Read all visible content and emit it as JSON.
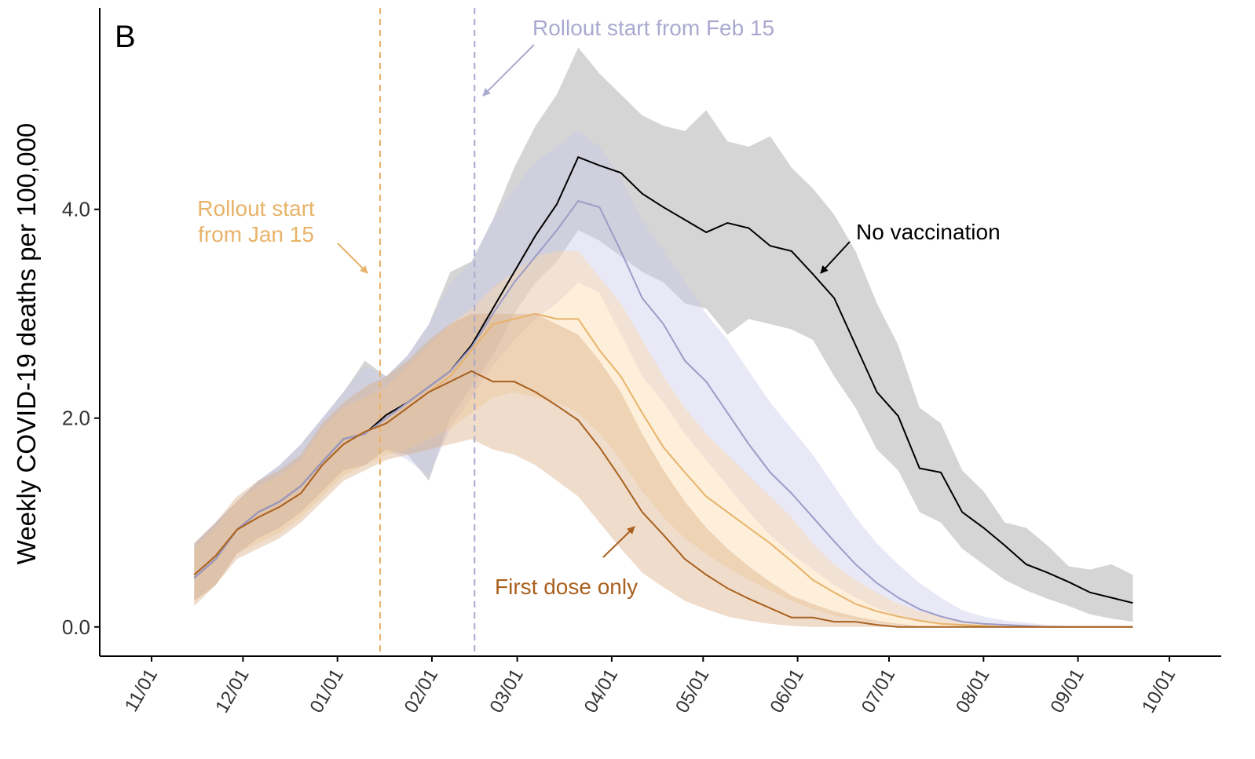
{
  "chart_data": {
    "type": "line",
    "panel_label": "B",
    "ylabel": "Weekly COVID-19 deaths per 100,000",
    "xlabel": "",
    "ylim": [
      -0.28,
      5.93
    ],
    "xlim": [
      "2020-10-15",
      "2021-10-18"
    ],
    "grid": false,
    "y_ticks": [
      {
        "value": 0,
        "label": "0.0"
      },
      {
        "value": 2,
        "label": "2.0"
      },
      {
        "value": 4,
        "label": "4.0"
      }
    ],
    "x_ticks": [
      {
        "date": "2020-11-01",
        "label": "11/01"
      },
      {
        "date": "2020-12-01",
        "label": "12/01"
      },
      {
        "date": "2021-01-01",
        "label": "01/01"
      },
      {
        "date": "2021-02-01",
        "label": "02/01"
      },
      {
        "date": "2021-03-01",
        "label": "03/01"
      },
      {
        "date": "2021-04-01",
        "label": "04/01"
      },
      {
        "date": "2021-05-01",
        "label": "05/01"
      },
      {
        "date": "2021-06-01",
        "label": "06/01"
      },
      {
        "date": "2021-07-01",
        "label": "07/01"
      },
      {
        "date": "2021-08-01",
        "label": "08/01"
      },
      {
        "date": "2021-09-01",
        "label": "09/01"
      },
      {
        "date": "2021-10-01",
        "label": "10/01"
      }
    ],
    "x": [
      "2020-11-15",
      "2020-11-22",
      "2020-11-29",
      "2020-12-06",
      "2020-12-13",
      "2020-12-20",
      "2020-12-27",
      "2021-01-03",
      "2021-01-10",
      "2021-01-17",
      "2021-01-24",
      "2021-01-31",
      "2021-02-07",
      "2021-02-14",
      "2021-02-21",
      "2021-02-28",
      "2021-03-07",
      "2021-03-14",
      "2021-03-21",
      "2021-03-28",
      "2021-04-04",
      "2021-04-11",
      "2021-04-18",
      "2021-04-25",
      "2021-05-02",
      "2021-05-09",
      "2021-05-16",
      "2021-05-23",
      "2021-05-30",
      "2021-06-06",
      "2021-06-13",
      "2021-06-20",
      "2021-06-27",
      "2021-07-04",
      "2021-07-11",
      "2021-07-18",
      "2021-07-25",
      "2021-08-01",
      "2021-08-08",
      "2021-08-15",
      "2021-08-22",
      "2021-08-29",
      "2021-09-05",
      "2021-09-12",
      "2021-09-19"
    ],
    "series": [
      {
        "name": "No vaccination",
        "color": "#000000",
        "band_color": "#9a9a9a",
        "values": [
          0.47,
          0.65,
          0.93,
          1.1,
          1.2,
          1.35,
          1.58,
          1.8,
          1.85,
          2.03,
          2.15,
          2.3,
          2.45,
          2.7,
          3.05,
          3.4,
          3.75,
          4.05,
          4.5,
          4.42,
          4.35,
          4.15,
          4.02,
          3.9,
          3.78,
          3.87,
          3.82,
          3.65,
          3.6,
          3.38,
          3.15,
          2.7,
          2.25,
          2.02,
          1.52,
          1.48,
          1.1,
          0.95,
          0.78,
          0.6,
          0.52,
          0.43,
          0.33,
          0.28,
          0.23
        ],
        "lower": [
          0.25,
          0.4,
          0.7,
          0.85,
          0.95,
          1.1,
          1.3,
          1.5,
          1.55,
          1.7,
          1.65,
          1.4,
          2.0,
          2.3,
          2.6,
          3.0,
          3.3,
          3.5,
          3.8,
          3.7,
          3.55,
          3.4,
          3.3,
          3.1,
          3.05,
          2.8,
          2.95,
          2.9,
          2.85,
          2.75,
          2.4,
          2.1,
          1.7,
          1.5,
          1.1,
          1.0,
          0.75,
          0.6,
          0.45,
          0.35,
          0.27,
          0.2,
          0.12,
          0.08,
          0.05
        ],
        "upper": [
          0.8,
          1.0,
          1.2,
          1.4,
          1.55,
          1.75,
          2.0,
          2.25,
          2.55,
          2.4,
          2.6,
          2.9,
          3.4,
          3.5,
          3.9,
          4.4,
          4.8,
          5.1,
          5.55,
          5.3,
          5.1,
          4.9,
          4.8,
          4.75,
          4.95,
          4.65,
          4.6,
          4.7,
          4.4,
          4.2,
          3.95,
          3.6,
          3.1,
          2.7,
          2.1,
          1.95,
          1.5,
          1.3,
          1.0,
          0.95,
          0.78,
          0.58,
          0.55,
          0.6,
          0.5
        ]
      },
      {
        "name": "Rollout start from Feb 15",
        "color": "#9d9cc8",
        "band_color": "#c9c9ea",
        "values": [
          0.47,
          0.65,
          0.93,
          1.1,
          1.2,
          1.35,
          1.58,
          1.8,
          1.85,
          2.0,
          2.15,
          2.3,
          2.45,
          2.68,
          3.0,
          3.3,
          3.55,
          3.8,
          4.08,
          4.02,
          3.6,
          3.15,
          2.9,
          2.55,
          2.35,
          2.05,
          1.75,
          1.48,
          1.28,
          1.05,
          0.82,
          0.6,
          0.42,
          0.28,
          0.17,
          0.1,
          0.05,
          0.03,
          0.02,
          0.01,
          0,
          0,
          0,
          0,
          0
        ],
        "lower": [
          0.25,
          0.4,
          0.7,
          0.85,
          0.95,
          1.1,
          1.3,
          1.5,
          1.55,
          1.7,
          1.6,
          1.45,
          1.9,
          2.2,
          2.5,
          2.75,
          2.95,
          3.1,
          3.3,
          3.2,
          2.8,
          2.4,
          2.15,
          1.85,
          1.6,
          1.35,
          1.1,
          0.88,
          0.7,
          0.55,
          0.4,
          0.28,
          0.18,
          0.1,
          0.05,
          0.03,
          0.01,
          0,
          0,
          0,
          0,
          0,
          0,
          0,
          0
        ],
        "upper": [
          0.8,
          1.0,
          1.2,
          1.4,
          1.55,
          1.75,
          2.0,
          2.25,
          2.5,
          2.4,
          2.6,
          2.9,
          3.3,
          3.5,
          3.9,
          4.2,
          4.45,
          4.6,
          4.75,
          4.6,
          4.3,
          3.9,
          3.6,
          3.3,
          3.0,
          2.75,
          2.45,
          2.15,
          1.9,
          1.65,
          1.35,
          1.05,
          0.8,
          0.6,
          0.42,
          0.28,
          0.16,
          0.1,
          0.06,
          0.04,
          0.02,
          0.01,
          0,
          0,
          0
        ]
      },
      {
        "name": "Rollout start from Jan 15",
        "color": "#e8b36a",
        "band_color": "#fcd9a6",
        "values": [
          0.5,
          0.68,
          0.93,
          1.05,
          1.15,
          1.28,
          1.55,
          1.75,
          1.87,
          1.95,
          2.1,
          2.25,
          2.4,
          2.65,
          2.9,
          2.95,
          3.0,
          2.95,
          2.95,
          2.65,
          2.4,
          2.05,
          1.72,
          1.48,
          1.25,
          1.1,
          0.95,
          0.8,
          0.63,
          0.45,
          0.33,
          0.22,
          0.15,
          0.1,
          0.06,
          0.03,
          0.02,
          0.01,
          0,
          0,
          0,
          0,
          0,
          0,
          0
        ],
        "lower": [
          0.25,
          0.4,
          0.7,
          0.8,
          0.9,
          1.05,
          1.25,
          1.45,
          1.55,
          1.65,
          1.7,
          1.8,
          1.9,
          2.05,
          2.2,
          2.25,
          2.2,
          2.15,
          2.05,
          1.85,
          1.6,
          1.3,
          1.05,
          0.85,
          0.7,
          0.57,
          0.45,
          0.35,
          0.25,
          0.17,
          0.11,
          0.07,
          0.04,
          0.02,
          0.01,
          0,
          0,
          0,
          0,
          0,
          0,
          0,
          0,
          0,
          0
        ],
        "upper": [
          0.75,
          0.95,
          1.2,
          1.35,
          1.45,
          1.6,
          1.9,
          2.1,
          2.2,
          2.3,
          2.5,
          2.7,
          2.9,
          3.05,
          3.25,
          3.4,
          3.55,
          3.6,
          3.6,
          3.35,
          3.1,
          2.75,
          2.4,
          2.1,
          1.85,
          1.65,
          1.45,
          1.25,
          1.05,
          0.8,
          0.6,
          0.45,
          0.33,
          0.22,
          0.15,
          0.1,
          0.06,
          0.04,
          0.02,
          0.01,
          0,
          0,
          0,
          0,
          0
        ]
      },
      {
        "name": "First dose only",
        "color": "#a9601e",
        "band_color": "#d9ab82",
        "values": [
          0.5,
          0.68,
          0.93,
          1.05,
          1.15,
          1.28,
          1.55,
          1.75,
          1.87,
          1.95,
          2.1,
          2.25,
          2.35,
          2.45,
          2.35,
          2.35,
          2.25,
          2.12,
          1.98,
          1.72,
          1.42,
          1.1,
          0.88,
          0.65,
          0.5,
          0.37,
          0.27,
          0.18,
          0.09,
          0.09,
          0.05,
          0.05,
          0.02,
          0,
          0,
          0,
          0,
          0,
          0,
          0,
          0,
          0,
          0,
          0,
          0
        ],
        "lower": [
          0.2,
          0.4,
          0.65,
          0.75,
          0.85,
          1.0,
          1.2,
          1.4,
          1.5,
          1.6,
          1.65,
          1.7,
          1.75,
          1.8,
          1.7,
          1.65,
          1.55,
          1.4,
          1.25,
          1.0,
          0.75,
          0.52,
          0.38,
          0.25,
          0.17,
          0.1,
          0.06,
          0.03,
          0.01,
          0,
          0,
          0,
          0,
          0,
          0,
          0,
          0,
          0,
          0,
          0,
          0,
          0,
          0,
          0,
          0
        ],
        "upper": [
          0.8,
          1.0,
          1.25,
          1.4,
          1.5,
          1.65,
          1.95,
          2.15,
          2.3,
          2.4,
          2.55,
          2.75,
          2.9,
          3.0,
          3.0,
          3.0,
          3.0,
          2.9,
          2.8,
          2.55,
          2.25,
          1.85,
          1.5,
          1.2,
          0.95,
          0.75,
          0.58,
          0.43,
          0.3,
          0.22,
          0.15,
          0.1,
          0.06,
          0.03,
          0.01,
          0,
          0,
          0,
          0,
          0,
          0,
          0,
          0,
          0,
          0
        ]
      }
    ],
    "vlines": [
      {
        "date": "2021-01-15",
        "color": "#e8b36a"
      },
      {
        "date": "2021-02-15",
        "color": "#aaa9d0"
      }
    ],
    "annotations": [
      {
        "text": "Rollout start from Feb 15",
        "color": "#aaa9d0"
      },
      {
        "text": "Rollout start",
        "text2": "from Jan 15",
        "color": "#e8b36a"
      },
      {
        "text": "No vaccination",
        "color": "#000000"
      },
      {
        "text": "First dose only",
        "color": "#a9601e"
      }
    ]
  }
}
